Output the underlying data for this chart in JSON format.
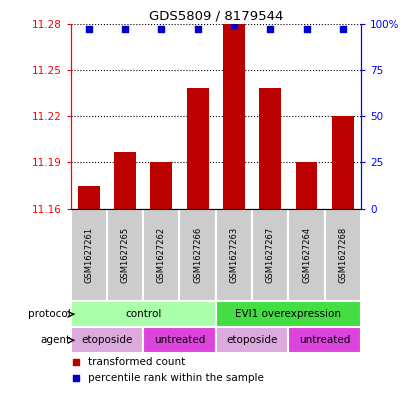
{
  "title": "GDS5809 / 8179544",
  "samples": [
    "GSM1627261",
    "GSM1627265",
    "GSM1627262",
    "GSM1627266",
    "GSM1627263",
    "GSM1627267",
    "GSM1627264",
    "GSM1627268"
  ],
  "bar_values": [
    11.175,
    11.197,
    11.19,
    11.238,
    11.28,
    11.238,
    11.19,
    11.22
  ],
  "percentile_values": [
    97,
    97,
    97,
    97,
    99,
    97,
    97,
    97
  ],
  "ylim_left": [
    11.16,
    11.28
  ],
  "yticks_left": [
    11.16,
    11.19,
    11.22,
    11.25,
    11.28
  ],
  "ytick_labels_left": [
    "11.16",
    "11.19",
    "11.22",
    "11.25",
    "11.28"
  ],
  "yticks_right": [
    0,
    25,
    50,
    75,
    100
  ],
  "ytick_labels_right": [
    "0",
    "25",
    "50",
    "75",
    "100%"
  ],
  "bar_color": "#bb0000",
  "dot_color": "#0000cc",
  "protocol_groups": [
    {
      "label": "control",
      "start": 0,
      "end": 4,
      "color": "#aaffaa"
    },
    {
      "label": "EVI1 overexpression",
      "start": 4,
      "end": 8,
      "color": "#44dd44"
    }
  ],
  "agent_groups": [
    {
      "label": "etoposide",
      "start": 0,
      "end": 2,
      "color": "#ddaadd"
    },
    {
      "label": "untreated",
      "start": 2,
      "end": 4,
      "color": "#dd44dd"
    },
    {
      "label": "etoposide",
      "start": 4,
      "end": 6,
      "color": "#ddaadd"
    },
    {
      "label": "untreated",
      "start": 6,
      "end": 8,
      "color": "#dd44dd"
    }
  ],
  "protocol_label": "protocol",
  "agent_label": "agent",
  "sample_bg_color": "#cccccc",
  "legend_items": [
    {
      "label": "transformed count",
      "color": "#bb0000",
      "marker": "s"
    },
    {
      "label": "percentile rank within the sample",
      "color": "#0000cc",
      "marker": "s"
    }
  ]
}
